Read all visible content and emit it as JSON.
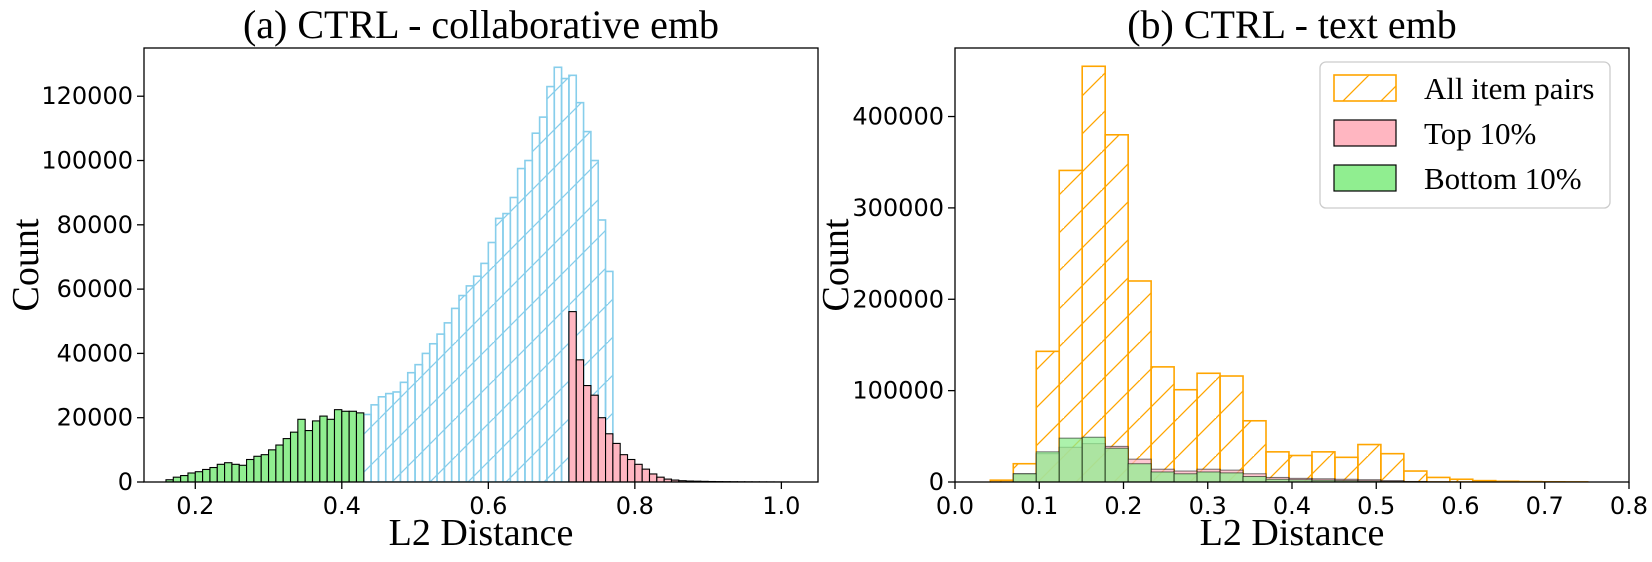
{
  "chart_data": [
    {
      "type": "bar",
      "title": "(a) CTRL - collaborative emb",
      "xlabel": "L2 Distance",
      "ylabel": "Count",
      "xlim": [
        0.13,
        1.05
      ],
      "ylim": [
        0,
        135000
      ],
      "xticks": [
        0.2,
        0.4,
        0.6,
        0.8,
        1.0
      ],
      "xtick_labels": [
        "0.2",
        "0.4",
        "0.6",
        "0.8",
        "1.0"
      ],
      "yticks": [
        0,
        20000,
        40000,
        60000,
        80000,
        100000,
        120000
      ],
      "ytick_labels": [
        "0",
        "20000",
        "40000",
        "60000",
        "80000",
        "100000",
        "120000"
      ],
      "bin_width": 0.01,
      "series": [
        {
          "name": "All item pairs",
          "style": "hatch-outline",
          "color": "#87ceeb",
          "x_start": 0.43,
          "values": [
            21000,
            24000,
            26500,
            27500,
            28000,
            31000,
            34000,
            36500,
            40000,
            43000,
            46000,
            49500,
            54000,
            58000,
            61000,
            64000,
            68000,
            74500,
            82000,
            83500,
            88500,
            97500,
            100000,
            108500,
            113500,
            123000,
            129000,
            125500,
            126500,
            118000,
            109000,
            100000,
            81500,
            65500
          ]
        },
        {
          "name": "Top 10%",
          "style": "solid",
          "color": "#ffb6c1",
          "x_start": 0.71,
          "values": [
            53000,
            38000,
            30000,
            27000,
            20000,
            15000,
            12000,
            8500,
            7000,
            5500,
            4000,
            2500,
            1500,
            900,
            600,
            400,
            300,
            250,
            200,
            150,
            120,
            100,
            80,
            60,
            50,
            40,
            30,
            20,
            10,
            5
          ]
        },
        {
          "name": "Bottom 10%",
          "style": "solid",
          "color": "#90ee90",
          "x_start": 0.16,
          "values": [
            700,
            1500,
            2000,
            2800,
            3200,
            3900,
            4500,
            5500,
            6000,
            5500,
            5200,
            7000,
            8000,
            8500,
            10000,
            11500,
            13500,
            15500,
            19500,
            16000,
            19000,
            20500,
            19500,
            22500,
            22000,
            22000,
            21500
          ]
        }
      ]
    },
    {
      "type": "bar",
      "title": "(b) CTRL - text emb",
      "xlabel": "L2 Distance",
      "ylabel": "Count",
      "xlim": [
        0.0,
        0.8
      ],
      "ylim": [
        0,
        475000
      ],
      "xticks": [
        0.0,
        0.1,
        0.2,
        0.3,
        0.4,
        0.5,
        0.6,
        0.7,
        0.8
      ],
      "xtick_labels": [
        "0.0",
        "0.1",
        "0.2",
        "0.3",
        "0.4",
        "0.5",
        "0.6",
        "0.7",
        "0.8"
      ],
      "yticks": [
        0,
        100000,
        200000,
        300000,
        400000
      ],
      "ytick_labels": [
        "0",
        "100000",
        "200000",
        "300000",
        "400000"
      ],
      "bin_width": 0.02727,
      "legend": {
        "position": "top-right",
        "entries": [
          "All item pairs",
          "Top 10%",
          "Bottom 10%"
        ]
      },
      "series": [
        {
          "name": "All item pairs",
          "style": "hatch-outline",
          "color": "#ffa500",
          "x_start": 0.0419,
          "values": [
            2000,
            20000,
            143000,
            341000,
            455000,
            380000,
            220000,
            126000,
            101000,
            119000,
            116000,
            67000,
            33000,
            29000,
            33000,
            27000,
            41000,
            31000,
            12000,
            5000,
            3000,
            1500,
            800,
            400,
            200,
            100,
            0,
            0,
            0
          ]
        },
        {
          "name": "Top 10%",
          "style": "solid-alpha",
          "color": "#ffb6c1",
          "x_start": 0.0419,
          "values": [
            0,
            9000,
            31000,
            38000,
            42000,
            39000,
            25000,
            14000,
            12000,
            14000,
            13000,
            9000,
            5000,
            4000,
            3500,
            3000,
            2500,
            1500,
            600,
            200,
            100
          ]
        },
        {
          "name": "Bottom 10%",
          "style": "solid-alpha",
          "color": "#90ee90",
          "x_start": 0.0419,
          "values": [
            0,
            9000,
            33000,
            48000,
            49000,
            37000,
            20000,
            11000,
            9000,
            11000,
            10000,
            6000,
            3000,
            2500,
            2000,
            1500,
            1200,
            700,
            300,
            100
          ]
        }
      ]
    }
  ]
}
